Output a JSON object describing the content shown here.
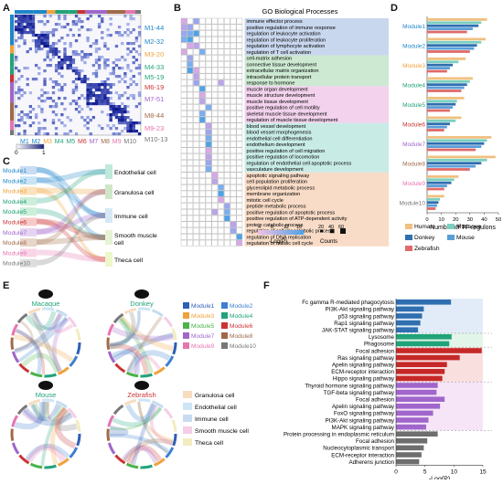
{
  "panel_labels": {
    "a": "A",
    "b": "B",
    "c": "C",
    "d": "D",
    "e": "E",
    "f": "F"
  },
  "colors": {
    "m1": "#1f86c8",
    "m2": "#1f86c8",
    "m3": "#f0a23a",
    "m4": "#21a37a",
    "m5": "#21a37a",
    "m6": "#cc3333",
    "m7": "#a066cc",
    "m8": "#a06a48",
    "m9": "#e675b0",
    "m10": "#777777",
    "human": "#f0c080",
    "macaque": "#7ad0c0",
    "donkey": "#2f6fb0",
    "mouse": "#5a9ed8",
    "zebrafish": "#e06a6a",
    "band_blue": "#c9d7ee",
    "band_green": "#cde9d2",
    "band_pink": "#f2d2ec",
    "band_teal": "#c8ebe6",
    "band_orange": "#f8dcc7"
  },
  "panel_a": {
    "row_labels": [
      "M1-44",
      "M2-32",
      "M3-20",
      "M4-33",
      "M5-19",
      "M6-19",
      "M7-51",
      "M8-44",
      "M9-23",
      "M10-13"
    ],
    "row_colors": [
      "#1f86c8",
      "#1f86c8",
      "#f0a23a",
      "#21a37a",
      "#21a37a",
      "#cc3333",
      "#a066cc",
      "#a06a48",
      "#e675b0",
      "#777777"
    ],
    "col_labels": [
      "M1",
      "M2",
      "M3",
      "M4",
      "M5",
      "M6",
      "M7",
      "M8",
      "M9",
      "M10"
    ],
    "colorbar_ticks": [
      "0",
      "1"
    ]
  },
  "panel_b": {
    "title": "GO Biological Processes",
    "terms": [
      "immune effector process",
      "positive regulation of immune response",
      "regulation of leukocyte activation",
      "regulation of leukocyte proliferation",
      "regulation of lymphocyte activation",
      "regulation of T cell activation",
      "cell-matrix adhesion",
      "connective tissue development",
      "extracellular matrix organization",
      "intracellular protein transport",
      "response to hormone",
      "muscle organ development",
      "muscle structure development",
      "muscle tissue development",
      "positive regulation of cell motility",
      "skeletal muscle tissue development",
      "regulation of muscle tissue development",
      "blood vessel development",
      "blood vessel morphogenesis",
      "endothelial cell differentiation",
      "endothelium development",
      "positive regulation of cell migration",
      "positive regulation of locomotion",
      "regulation of endothelial cell apoptotic process",
      "vasculature development",
      "apoptotic signaling pathway",
      "cell population proliferation",
      "glycerolipid metabolic process",
      "membrane organization",
      "mitotic cell cycle",
      "peptide metabolic process",
      "positive regulation of apoptotic process",
      "positive regulation of ATP-dependent activity",
      "protein catabolic process",
      "regulation of cellular catabolic process",
      "regulation of DNA replication",
      "regulation of mitotic cell cycle"
    ],
    "x_start": "M1",
    "x_end": "M10",
    "legend_ticks": [
      "4",
      "8",
      "12",
      "16"
    ],
    "legend_label": "-Log(P)",
    "count_ticks": [
      "20",
      "40",
      "60"
    ],
    "count_label": "Counts"
  },
  "panel_c": {
    "modules": [
      "Module1",
      "Module2",
      "Module3",
      "Module4",
      "Module5",
      "Module6",
      "Module7",
      "Module8",
      "Module9",
      "Module10"
    ],
    "cell_types": [
      "Endothelial cell",
      "Granulosa cell",
      "Immune cell",
      "Smooth muscle cell",
      "Theca cell"
    ]
  },
  "panel_d": {
    "modules": [
      "Module1",
      "Module2",
      "Module3",
      "Module4",
      "Module5",
      "Module6",
      "Module7",
      "Module8",
      "Module9",
      "Module10"
    ],
    "xticks": [
      "0",
      "10",
      "20",
      "30",
      "40",
      "50"
    ],
    "xlabel": "Number of TF regulons",
    "legend": [
      "Human",
      "Macaque",
      "Donkey",
      "Mouse",
      "Zebrafish"
    ]
  },
  "chart_data": [
    {
      "type": "bar",
      "xlabel": "Number of TF regulons",
      "xlim": [
        0,
        50
      ],
      "categories": [
        "Module1",
        "Module2",
        "Module3",
        "Module4",
        "Module5",
        "Module6",
        "Module7",
        "Module8",
        "Module9",
        "Module10"
      ],
      "series": [
        {
          "name": "Human",
          "values": [
            42,
            41,
            27,
            32,
            26,
            24,
            45,
            48,
            22,
            12
          ]
        },
        {
          "name": "Macaque",
          "values": [
            38,
            38,
            22,
            30,
            21,
            20,
            42,
            42,
            19,
            9
          ]
        },
        {
          "name": "Donkey",
          "values": [
            36,
            35,
            18,
            28,
            20,
            16,
            40,
            38,
            17,
            8
          ]
        },
        {
          "name": "Mouse",
          "values": [
            32,
            33,
            16,
            26,
            18,
            14,
            38,
            34,
            14,
            7
          ]
        },
        {
          "name": "Zebrafish",
          "values": [
            28,
            30,
            14,
            24,
            16,
            12,
            34,
            30,
            12,
            6
          ]
        }
      ]
    },
    {
      "type": "bar",
      "xlabel": "-Log(P)",
      "xlim": [
        0,
        15
      ],
      "categories": [
        "Fc gamma R-mediated phagocytosis",
        "PI3K-Akt signaling pathway",
        "p53 signaling pathway",
        "Rap1 signaling pathway",
        "JAK-STAT signaling pathway",
        "Lysosome",
        "Phagosome",
        "Focal adhesion",
        "Ras signaling pathway",
        "Apelin signaling pathway",
        "ECM-receptor interaction",
        "Hippo signaling pathway",
        "Thyroid hormone signaling pathway",
        "TGF-beta signaling pathway",
        "Focal adhesion",
        "Apelin signaling pathway",
        "FoxO signaling pathway",
        "PI3K-Akt signaling pathway",
        "MAPK signaling pathway",
        "Protein processing in endoplasmic reticulum",
        "Focal adhesion",
        "Nucleocytoplasmic transport",
        "ECM-receptor interaction",
        "Adherens junction"
      ],
      "values": [
        9.5,
        4.8,
        4.5,
        4.2,
        3.8,
        9.6,
        9.2,
        14.8,
        11.0,
        8.8,
        8.4,
        8.0,
        7.2,
        7.0,
        8.4,
        7.6,
        6.4,
        5.6,
        5.2,
        7.2,
        5.4,
        4.8,
        4.4,
        4.0
      ],
      "xticks": [
        "0",
        "5",
        "10",
        "15"
      ]
    }
  ],
  "panel_e": {
    "species": [
      "Macaque",
      "Donkey",
      "Mouse",
      "Zebrafish"
    ],
    "module_legend": [
      "Module1",
      "Module2",
      "Module3",
      "Module4",
      "Module5",
      "Module6",
      "Module7",
      "Module8",
      "Module9",
      "Module10"
    ],
    "cell_legend": [
      "Granulosa cell",
      "Endothelial cell",
      "Immune cell",
      "Smooth muscle cell",
      "Theca cell"
    ]
  }
}
